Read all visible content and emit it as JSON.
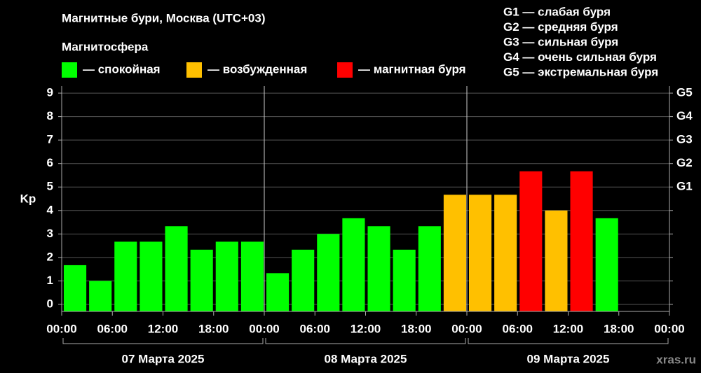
{
  "chart_data": {
    "type": "bar",
    "title": "Магнитные бури, Москва (UTC+03)",
    "legend_title": "Магнитосфера",
    "legend": [
      {
        "name": "— спокойная",
        "color": "#00ff00"
      },
      {
        "name": "— возбужденная",
        "color": "#ffc000"
      },
      {
        "name": "— магнитная буря",
        "color": "#ff0000"
      }
    ],
    "scale_notes": [
      "G1 — слабая буря",
      "G2 — средняя буря",
      "G3 — сильная буря",
      "G4 — очень сильная буря",
      "G5 — экстремальная буря"
    ],
    "y_label": "Kp",
    "x": [
      0,
      3,
      6,
      9,
      12,
      15,
      18,
      21,
      24,
      27,
      30,
      33,
      36,
      39,
      42,
      45,
      48,
      51,
      54,
      57,
      60,
      63,
      66,
      69
    ],
    "values": [
      1.67,
      1.0,
      2.67,
      2.67,
      3.33,
      2.33,
      2.67,
      2.67,
      1.33,
      2.33,
      3.0,
      3.67,
      3.33,
      2.33,
      3.33,
      4.67,
      4.67,
      4.67,
      5.67,
      4.0,
      5.67,
      3.67,
      null,
      null
    ],
    "colors": [
      "#00ff00",
      "#00ff00",
      "#00ff00",
      "#00ff00",
      "#00ff00",
      "#00ff00",
      "#00ff00",
      "#00ff00",
      "#00ff00",
      "#00ff00",
      "#00ff00",
      "#00ff00",
      "#00ff00",
      "#00ff00",
      "#00ff00",
      "#ffc000",
      "#ffc000",
      "#ffc000",
      "#ff0000",
      "#ffc000",
      "#ff0000",
      "#00ff00",
      null,
      null
    ],
    "xlim": [
      0,
      72
    ],
    "xticks": [
      {
        "value": 0,
        "label": "00:00"
      },
      {
        "value": 6,
        "label": "06:00"
      },
      {
        "value": 12,
        "label": "12:00"
      },
      {
        "value": 18,
        "label": "18:00"
      },
      {
        "value": 24,
        "label": "00:00"
      },
      {
        "value": 30,
        "label": "06:00"
      },
      {
        "value": 36,
        "label": "12:00"
      },
      {
        "value": 42,
        "label": "18:00"
      },
      {
        "value": 48,
        "label": "00:00"
      },
      {
        "value": 54,
        "label": "06:00"
      },
      {
        "value": 60,
        "label": "12:00"
      },
      {
        "value": 66,
        "label": "18:00"
      },
      {
        "value": 72,
        "label": "00:00"
      }
    ],
    "ylim": [
      -0.3,
      9.3
    ],
    "yticks": [
      0,
      1,
      2,
      3,
      4,
      5,
      6,
      7,
      8,
      9
    ],
    "y2lim": [
      -0.3,
      9.3
    ],
    "y2ticks": [
      {
        "value": 5,
        "label": "G1"
      },
      {
        "value": 6,
        "label": "G2"
      },
      {
        "value": 7,
        "label": "G3"
      },
      {
        "value": 8,
        "label": "G4"
      },
      {
        "value": 9,
        "label": "G5"
      }
    ],
    "days": [
      {
        "label": "07 Марта 2025",
        "start": 0,
        "end": 24
      },
      {
        "label": "08 Марта 2025",
        "start": 24,
        "end": 48
      },
      {
        "label": "09 Марта 2025",
        "start": 48,
        "end": 72
      }
    ],
    "grid": true,
    "watermark": "xras.ru"
  }
}
